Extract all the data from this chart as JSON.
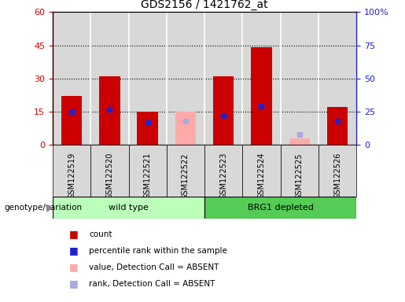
{
  "title": "GDS2156 / 1421762_at",
  "samples": [
    "GSM122519",
    "GSM122520",
    "GSM122521",
    "GSM122522",
    "GSM122523",
    "GSM122524",
    "GSM122525",
    "GSM122526"
  ],
  "count_values": [
    22,
    31,
    15,
    null,
    31,
    44,
    null,
    17
  ],
  "percentile_rank": [
    25,
    27,
    17,
    null,
    22,
    29,
    null,
    18
  ],
  "absent_value": [
    null,
    null,
    null,
    15,
    null,
    null,
    3,
    null
  ],
  "absent_rank": [
    null,
    null,
    null,
    18,
    null,
    null,
    8,
    null
  ],
  "ylim_left": [
    0,
    60
  ],
  "ylim_right": [
    0,
    100
  ],
  "yticks_left": [
    0,
    15,
    30,
    45,
    60
  ],
  "yticks_right": [
    0,
    25,
    50,
    75,
    100
  ],
  "bar_color_red": "#cc0000",
  "bar_color_pink": "#ffaaaa",
  "square_color_blue": "#2222cc",
  "square_color_lightblue": "#aaaadd",
  "bg_color_plot": "#d8d8d8",
  "bg_color_wildtype": "#bbffbb",
  "bg_color_brg1": "#55cc55",
  "bar_width": 0.55,
  "left_ylabel_color": "#cc0000",
  "right_ylabel_color": "#2222cc",
  "title_fontsize": 10,
  "tick_fontsize": 8,
  "legend_fontsize": 8,
  "sample_fontsize": 7
}
